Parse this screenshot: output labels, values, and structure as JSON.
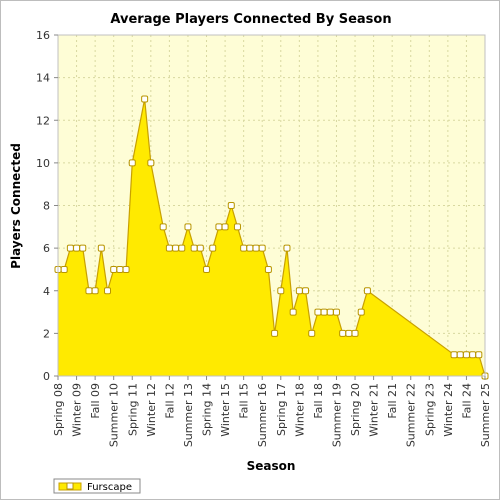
{
  "chart_data": {
    "type": "area",
    "title": "Average Players Connected By Season",
    "xlabel": "Season",
    "ylabel": "Players Connected",
    "ylim": [
      0,
      16
    ],
    "yticks": [
      0,
      2,
      4,
      6,
      8,
      10,
      12,
      14,
      16
    ],
    "grid": true,
    "legend_position": "bottom-left",
    "colors": {
      "fill": "#ffea00",
      "line": "#c8a000",
      "marker_fill": "#ffffff",
      "marker_stroke": "#b89500",
      "plot_bg": "#fefdd6",
      "grid": "#d8d8a0"
    },
    "tick_labels": [
      "Spring 08",
      "Winter 09",
      "Fall 09",
      "Summer 10",
      "Spring 11",
      "Winter 12",
      "Fall 12",
      "Summer 13",
      "Spring 14",
      "Winter 15",
      "Fall 15",
      "Summer 16",
      "Spring 17",
      "Winter 18",
      "Fall 18",
      "Summer 19",
      "Spring 20",
      "Winter 21",
      "Fall 21",
      "Summer 22",
      "Spring 23",
      "Winter 24",
      "Fall 24",
      "Summer 25"
    ],
    "series": [
      {
        "name": "Furscape",
        "points": [
          [
            0,
            5
          ],
          [
            1,
            5
          ],
          [
            2,
            6
          ],
          [
            3,
            6
          ],
          [
            4,
            6
          ],
          [
            5,
            4
          ],
          [
            6,
            4
          ],
          [
            7,
            6
          ],
          [
            8,
            4
          ],
          [
            9,
            5
          ],
          [
            10,
            5
          ],
          [
            11,
            5
          ],
          [
            12,
            10
          ],
          [
            14,
            13
          ],
          [
            15,
            10
          ],
          [
            17,
            7
          ],
          [
            18,
            6
          ],
          [
            19,
            6
          ],
          [
            20,
            6
          ],
          [
            21,
            7
          ],
          [
            22,
            6
          ],
          [
            23,
            6
          ],
          [
            24,
            5
          ],
          [
            25,
            6
          ],
          [
            26,
            7
          ],
          [
            27,
            7
          ],
          [
            28,
            8
          ],
          [
            29,
            7
          ],
          [
            30,
            6
          ],
          [
            31,
            6
          ],
          [
            32,
            6
          ],
          [
            33,
            6
          ],
          [
            34,
            5
          ],
          [
            35,
            2
          ],
          [
            36,
            4
          ],
          [
            37,
            6
          ],
          [
            38,
            3
          ],
          [
            39,
            4
          ],
          [
            40,
            4
          ],
          [
            41,
            2
          ],
          [
            42,
            3
          ],
          [
            43,
            3
          ],
          [
            44,
            3
          ],
          [
            45,
            3
          ],
          [
            46,
            2
          ],
          [
            47,
            2
          ],
          [
            48,
            2
          ],
          [
            49,
            3
          ],
          [
            50,
            4
          ],
          [
            64,
            1
          ],
          [
            65,
            1
          ],
          [
            66,
            1
          ],
          [
            67,
            1
          ],
          [
            68,
            1
          ],
          [
            69,
            0
          ]
        ]
      }
    ]
  }
}
